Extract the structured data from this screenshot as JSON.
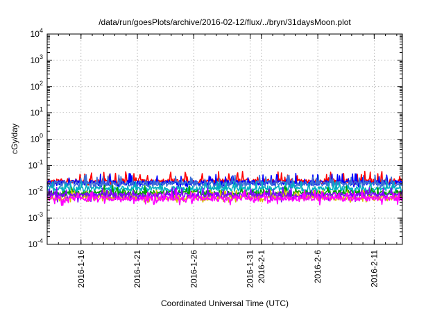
{
  "chart_data": {
    "type": "line",
    "title": "/data/run/goesPlots/archive/2016-02-12/flux/../bryn/31daysMoon.plot",
    "xlabel": "Coordinated Universal Time (UTC)",
    "ylabel": "cGy/day",
    "yscale": "log",
    "ylim": [
      0.0001,
      10000
    ],
    "xlim": [
      "2016-01-13",
      "2016-02-13T12:00"
    ],
    "grid": true,
    "legend": "none",
    "y_ticks": [
      {
        "base": "10",
        "exp": "4",
        "value": 10000
      },
      {
        "base": "10",
        "exp": "3",
        "value": 1000
      },
      {
        "base": "10",
        "exp": "2",
        "value": 100
      },
      {
        "base": "10",
        "exp": "1",
        "value": 10
      },
      {
        "base": "10",
        "exp": "0",
        "value": 1
      },
      {
        "base": "10",
        "exp": "-1",
        "value": 0.1
      },
      {
        "base": "10",
        "exp": "-2",
        "value": 0.01
      },
      {
        "base": "10",
        "exp": "-3",
        "value": 0.001
      },
      {
        "base": "10",
        "exp": "-4",
        "value": 0.0001
      }
    ],
    "x_ticks": [
      {
        "label": "2016-1-16",
        "date": "2016-01-16"
      },
      {
        "label": "2016-1-21",
        "date": "2016-01-21"
      },
      {
        "label": "2016-1-26",
        "date": "2016-01-26"
      },
      {
        "label": "2016-1-31",
        "date": "2016-01-31"
      },
      {
        "label": "2016-2-1",
        "date": "2016-02-01"
      },
      {
        "label": "2016-2-6",
        "date": "2016-02-06"
      },
      {
        "label": "2016-2-11",
        "date": "2016-02-11"
      }
    ],
    "series": [
      {
        "color": "#ff0000",
        "base": 0.025,
        "lo": 0.018,
        "hi": 0.06,
        "seed": 11
      },
      {
        "color": "#0000ff",
        "base": 0.022,
        "lo": 0.015,
        "hi": 0.05,
        "seed": 23
      },
      {
        "color": "#3b6fd6",
        "base": 0.02,
        "lo": 0.014,
        "hi": 0.045,
        "seed": 37
      },
      {
        "color": "#00b0c0",
        "base": 0.013,
        "lo": 0.008,
        "hi": 0.025,
        "seed": 41
      },
      {
        "color": "#00a000",
        "base": 0.009,
        "lo": 0.006,
        "hi": 0.018,
        "seed": 53
      },
      {
        "color": "#d8c000",
        "base": 0.006,
        "lo": 0.004,
        "hi": 0.012,
        "seed": 67
      },
      {
        "color": "#8000ff",
        "base": 0.0075,
        "lo": 0.004,
        "hi": 0.015,
        "seed": 71
      },
      {
        "color": "#ff00ff",
        "base": 0.0055,
        "lo": 0.003,
        "hi": 0.012,
        "seed": 83
      }
    ]
  }
}
